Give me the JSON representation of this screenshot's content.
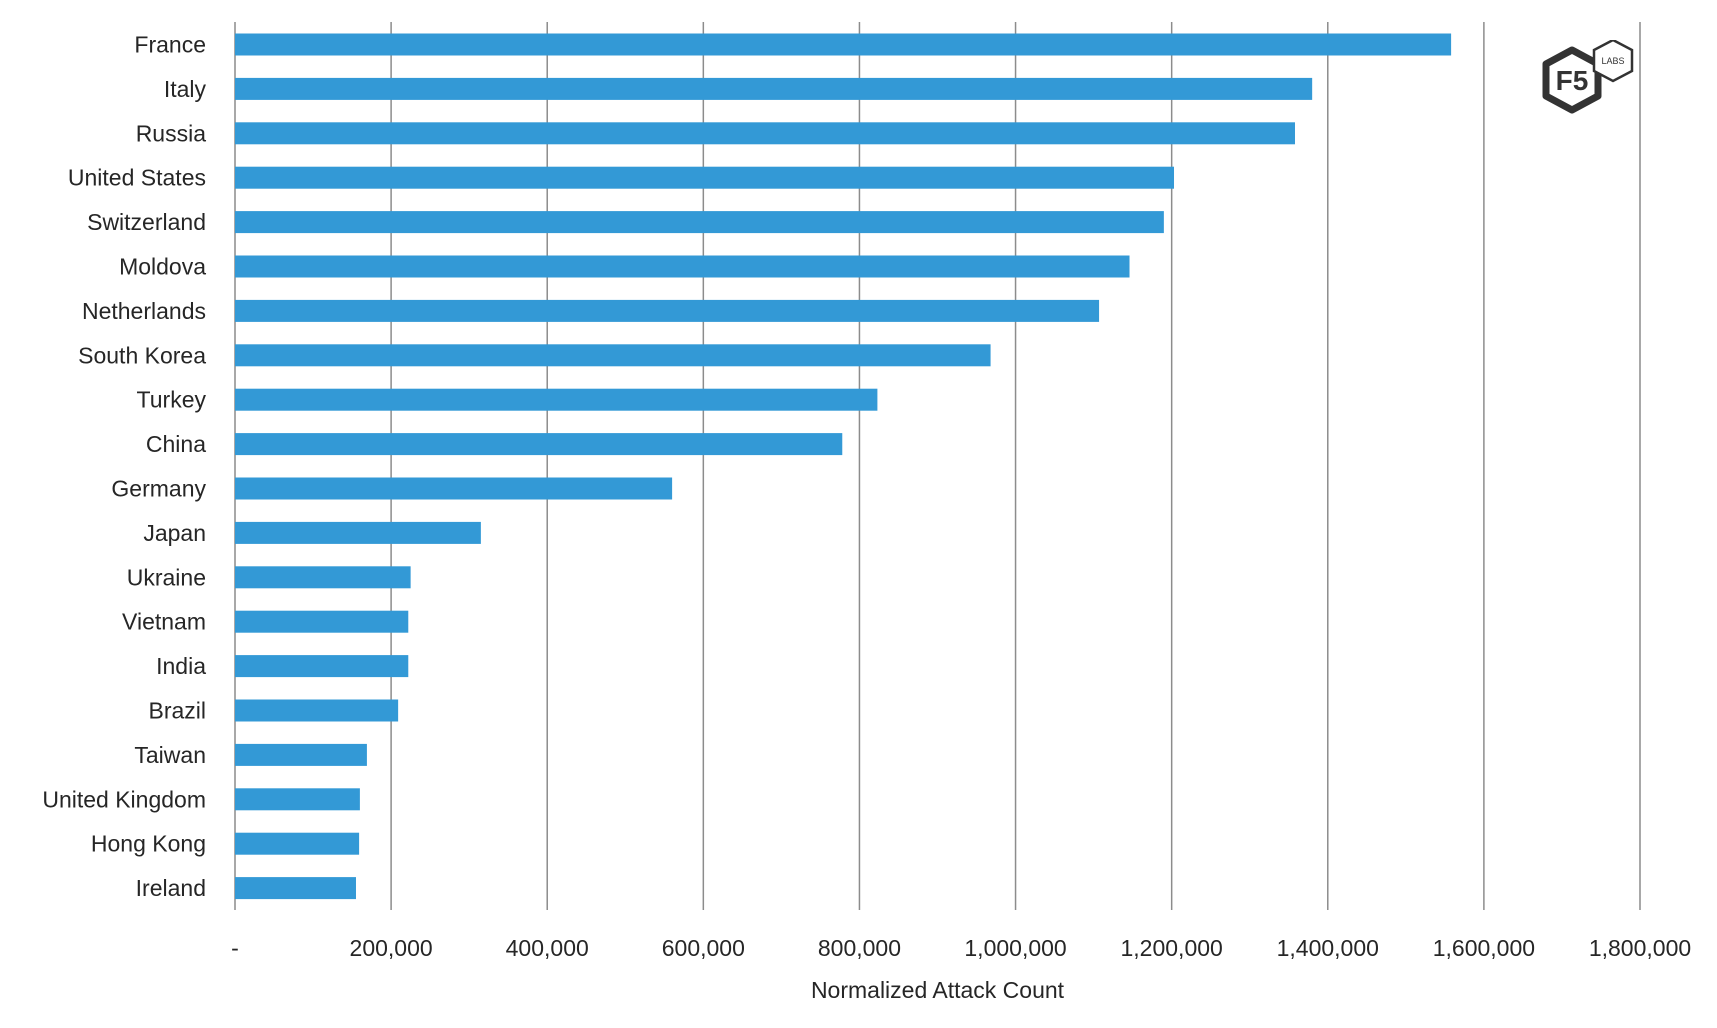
{
  "chart_data": {
    "type": "bar",
    "orientation": "horizontal",
    "title": "",
    "xlabel": "Normalized Attack Count",
    "ylabel": "",
    "xlim": [
      0,
      1800000
    ],
    "grid": true,
    "categories": [
      "France",
      "Italy",
      "Russia",
      "United States",
      "Switzerland",
      "Moldova",
      "Netherlands",
      "South Korea",
      "Turkey",
      "China",
      "Germany",
      "Japan",
      "Ukraine",
      "Vietnam",
      "India",
      "Brazil",
      "Taiwan",
      "United Kingdom",
      "Hong Kong",
      "Ireland"
    ],
    "values": [
      1558000,
      1380000,
      1358000,
      1203000,
      1190000,
      1146000,
      1107000,
      968000,
      823000,
      778000,
      560000,
      315000,
      225000,
      222000,
      222000,
      209000,
      169000,
      160000,
      159000,
      155000
    ],
    "x_ticks": [
      0,
      200000,
      400000,
      600000,
      800000,
      1000000,
      1200000,
      1400000,
      1600000,
      1800000
    ],
    "x_tick_labels": [
      "-",
      "200,000",
      "400,000",
      "600,000",
      "800,000",
      "1,000,000",
      "1,200,000",
      "1,400,000",
      "1,600,000",
      "1,800,000"
    ],
    "bar_color": "#3399d6"
  },
  "logo": {
    "main_text": "F5",
    "badge_text": "LABS",
    "color": "#333333"
  }
}
